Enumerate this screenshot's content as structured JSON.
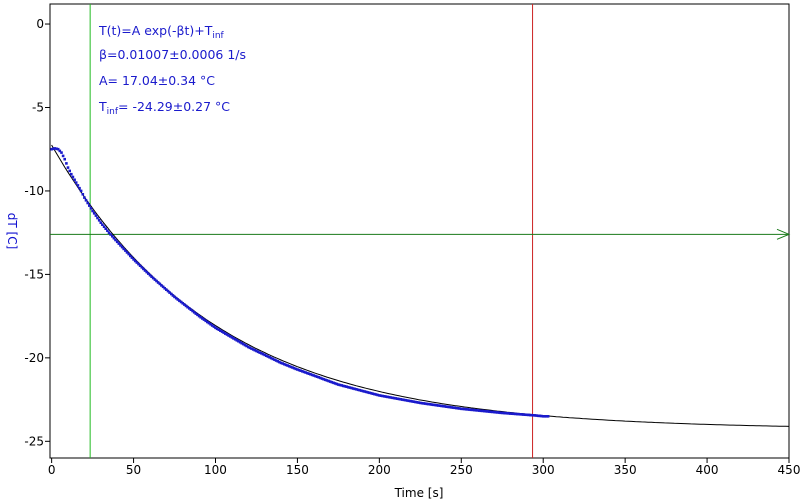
{
  "chart_data": {
    "type": "scatter",
    "xlabel": "Time [s]",
    "ylabel": "dT [C]",
    "xlim": [
      -1,
      450
    ],
    "ylim": [
      -26,
      1.2
    ],
    "x_ticks": [
      0,
      50,
      100,
      150,
      200,
      250,
      300,
      350,
      400,
      450
    ],
    "y_ticks": [
      0,
      -5,
      -10,
      -15,
      -20,
      -25
    ],
    "grid": false,
    "fit_model": {
      "formula_main": "T(t)=A exp(-βt)+T",
      "formula_sub": "inf",
      "beta_line": "β=0.01007±0.0006 1/s",
      "a_line": "A= 17.04±0.34 °C",
      "tinf_main": "T",
      "tinf_sub": "inf",
      "tinf_value": "= -24.29±0.27 °C",
      "A": 17.04,
      "beta": 0.01007,
      "T_inf": -24.29,
      "x_range": [
        0,
        450
      ]
    },
    "series": [
      {
        "color": "#1a1acc",
        "points": [
          [
            0,
            -7.5
          ],
          [
            2,
            -7.45
          ],
          [
            4,
            -7.5
          ],
          [
            6,
            -7.7
          ],
          [
            8,
            -8.1
          ],
          [
            10,
            -8.6
          ],
          [
            12,
            -9.0
          ],
          [
            15,
            -9.5
          ],
          [
            18,
            -10.0
          ],
          [
            20,
            -10.4
          ],
          [
            25,
            -11.2
          ],
          [
            30,
            -11.9
          ],
          [
            35,
            -12.5
          ],
          [
            40,
            -13.05
          ],
          [
            50,
            -14.1
          ],
          [
            60,
            -15.05
          ],
          [
            75,
            -16.35
          ],
          [
            90,
            -17.5
          ],
          [
            100,
            -18.2
          ],
          [
            120,
            -19.35
          ],
          [
            140,
            -20.3
          ],
          [
            150,
            -20.7
          ],
          [
            175,
            -21.6
          ],
          [
            200,
            -22.25
          ],
          [
            225,
            -22.7
          ],
          [
            250,
            -23.05
          ],
          [
            275,
            -23.3
          ],
          [
            295,
            -23.45
          ],
          [
            300,
            -23.5
          ],
          [
            303,
            -23.5
          ]
        ]
      }
    ],
    "vertical_markers": [
      {
        "x": 23.5,
        "color": "#22bb22"
      },
      {
        "x": 293.5,
        "color": "#cc2222"
      }
    ],
    "horizontal_marker": {
      "y": -12.6,
      "color": "#1a7a1a"
    }
  }
}
